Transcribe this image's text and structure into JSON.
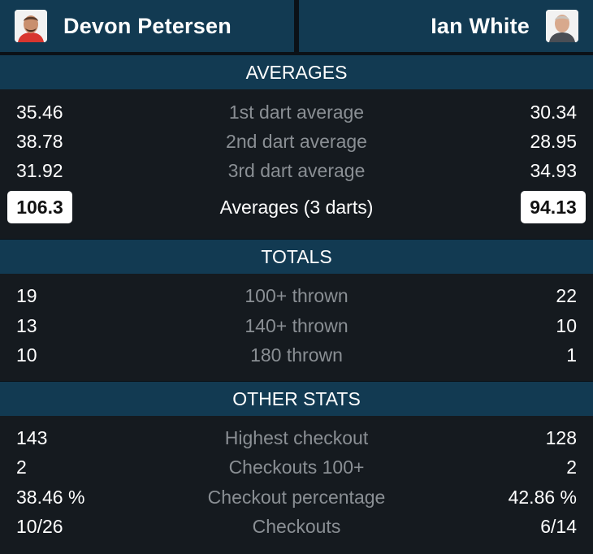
{
  "players": {
    "left": {
      "name": "Devon Petersen"
    },
    "right": {
      "name": "Ian White"
    }
  },
  "sections": {
    "averages": {
      "title": "AVERAGES",
      "rows": [
        {
          "label": "1st dart average",
          "left": "35.46",
          "right": "30.34"
        },
        {
          "label": "2nd dart average",
          "left": "38.78",
          "right": "28.95"
        },
        {
          "label": "3rd dart average",
          "left": "31.92",
          "right": "34.93"
        }
      ],
      "highlight": {
        "label": "Averages (3 darts)",
        "left": "106.3",
        "right": "94.13"
      }
    },
    "totals": {
      "title": "TOTALS",
      "rows": [
        {
          "label": "100+ thrown",
          "left": "19",
          "right": "22"
        },
        {
          "label": "140+ thrown",
          "left": "13",
          "right": "10"
        },
        {
          "label": "180 thrown",
          "left": "10",
          "right": "1"
        }
      ]
    },
    "other": {
      "title": "OTHER STATS",
      "rows": [
        {
          "label": "Highest checkout",
          "left": "143",
          "right": "128"
        },
        {
          "label": "Checkouts 100+",
          "left": "2",
          "right": "2"
        },
        {
          "label": "Checkout percentage",
          "left": "38.46 %",
          "right": "42.86 %"
        },
        {
          "label": "Checkouts",
          "left": "10/26",
          "right": "6/14"
        }
      ]
    }
  },
  "colors": {
    "header_bg": "#123a52",
    "body_bg": "#151a1f",
    "label_gray": "#8a8f94",
    "highlight_box": "#ffffff"
  }
}
